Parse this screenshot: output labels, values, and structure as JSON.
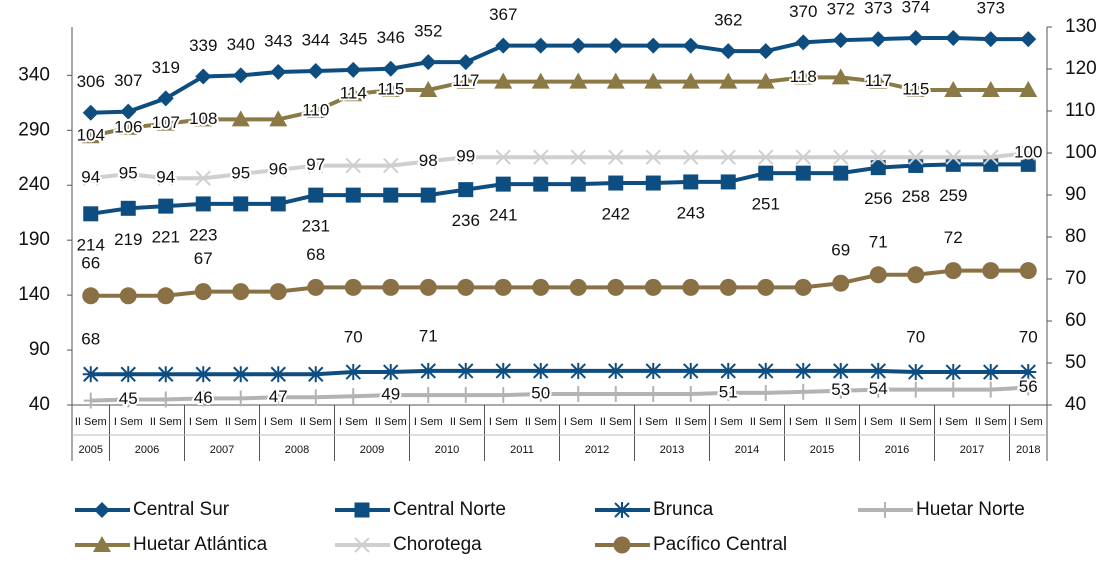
{
  "chart_data": {
    "type": "line",
    "categories": [
      "II Sem",
      "I Sem",
      "II Sem",
      "I Sem",
      "II Sem",
      "I Sem",
      "II Sem",
      "I Sem",
      "II Sem",
      "I Sem",
      "II Sem",
      "I Sem",
      "II Sem",
      "I Sem",
      "II Sem",
      "I Sem",
      "II Sem",
      "I Sem",
      "II Sem",
      "I Sem",
      "II Sem",
      "I Sem",
      "II Sem",
      "I Sem",
      "II Sem",
      "I Sem"
    ],
    "years": [
      "2005",
      "2006",
      "2007",
      "2008",
      "2009",
      "2010",
      "2011",
      "2012",
      "2013",
      "2014",
      "2015",
      "2016",
      "2017",
      "2018"
    ],
    "ylim": [
      40,
      384
    ],
    "yticks": [
      40,
      90,
      140,
      190,
      240,
      290,
      340
    ],
    "y2lim": [
      40,
      130
    ],
    "y2ticks": [
      40,
      50,
      60,
      70,
      80,
      90,
      100,
      110,
      120,
      130
    ],
    "grid": false,
    "series": [
      {
        "name": "Central Sur",
        "color": "#0e4d80",
        "marker": "diamond",
        "values": [
          306,
          307,
          319,
          339,
          340,
          343,
          344,
          345,
          346,
          352,
          352,
          367,
          367,
          367,
          367,
          367,
          367,
          362,
          362,
          370,
          372,
          373,
          374,
          374,
          373,
          373
        ],
        "value_labels": [
          "306",
          "307",
          "319",
          "339",
          "340",
          "343",
          "344",
          "345",
          "346",
          "352",
          null,
          "367",
          null,
          null,
          null,
          null,
          null,
          "362",
          null,
          "370",
          "372",
          "373",
          "374",
          null,
          "373",
          null
        ]
      },
      {
        "name": "Central Norte",
        "color": "#0e4d80",
        "marker": "square",
        "values": [
          214,
          219,
          221,
          223,
          223,
          223,
          231,
          231,
          231,
          231,
          236,
          241,
          241,
          241,
          242,
          242,
          243,
          243,
          251,
          251,
          251,
          256,
          258,
          259,
          259,
          259
        ],
        "value_labels": [
          "214",
          "219",
          "221",
          "223",
          null,
          null,
          "231",
          null,
          null,
          null,
          "236",
          "241",
          null,
          null,
          "242",
          null,
          "243",
          null,
          "251",
          null,
          null,
          "256",
          "258",
          "259",
          null,
          null
        ]
      },
      {
        "name": "Brunca",
        "color": "#0e4d80",
        "marker": "star",
        "values": [
          68,
          68,
          68,
          68,
          68,
          68,
          68,
          70,
          70,
          71,
          71,
          71,
          71,
          71,
          71,
          71,
          71,
          71,
          71,
          71,
          71,
          71,
          70,
          70,
          70,
          70
        ],
        "value_labels": [
          "68",
          null,
          null,
          null,
          null,
          null,
          null,
          "70",
          null,
          "71",
          null,
          null,
          null,
          null,
          null,
          null,
          null,
          null,
          null,
          null,
          null,
          null,
          "70",
          null,
          null,
          "70"
        ]
      },
      {
        "name": "Huetar Norte",
        "color": "#b3b3b3",
        "marker": "plus",
        "values": [
          44,
          45,
          45,
          46,
          46,
          47,
          47,
          48,
          49,
          49,
          49,
          49,
          50,
          50,
          50,
          50,
          50,
          51,
          51,
          52,
          53,
          54,
          54,
          54,
          54,
          56
        ],
        "value_labels": [
          null,
          "45",
          null,
          "46",
          null,
          "47",
          null,
          null,
          "49",
          null,
          null,
          null,
          "50",
          null,
          null,
          null,
          null,
          "51",
          null,
          null,
          "53",
          "54",
          null,
          null,
          null,
          "56"
        ]
      },
      {
        "name": "Huetar Atlántica",
        "color": "#8b7a45",
        "marker": "triangle",
        "axis": "y2",
        "values": [
          104,
          106,
          107,
          108,
          108,
          108,
          110,
          114,
          115,
          115,
          117,
          117,
          117,
          117,
          117,
          117,
          117,
          117,
          117,
          118,
          118,
          117,
          115,
          115,
          115,
          115
        ],
        "value_labels": [
          "104",
          "106",
          "107",
          "108",
          null,
          null,
          "110",
          "114",
          "115",
          null,
          "117",
          null,
          null,
          null,
          null,
          null,
          null,
          null,
          null,
          "118",
          null,
          "117",
          "115",
          null,
          null,
          null
        ]
      },
      {
        "name": "Chorotega",
        "color": "#cfcfcf",
        "marker": "x",
        "axis": "y2",
        "values": [
          94,
          95,
          94,
          94,
          95,
          96,
          97,
          97,
          97,
          98,
          99,
          99,
          99,
          99,
          99,
          99,
          99,
          99,
          99,
          99,
          99,
          99,
          99,
          99,
          99,
          100
        ],
        "value_labels": [
          "94",
          "95",
          "94",
          null,
          "95",
          "96",
          "97",
          null,
          null,
          "98",
          "99",
          null,
          null,
          null,
          null,
          null,
          null,
          null,
          null,
          null,
          null,
          null,
          null,
          null,
          null,
          "100"
        ]
      },
      {
        "name": "Pacífico Central",
        "color": "#8a7045",
        "marker": "circle",
        "axis": "y2",
        "values": [
          66,
          66,
          66,
          67,
          67,
          67,
          68,
          68,
          68,
          68,
          68,
          68,
          68,
          68,
          68,
          68,
          68,
          68,
          68,
          68,
          69,
          71,
          71,
          72,
          72,
          72
        ],
        "value_labels": [
          "66",
          null,
          null,
          "67",
          null,
          null,
          "68",
          null,
          null,
          null,
          null,
          null,
          null,
          null,
          null,
          null,
          null,
          null,
          null,
          null,
          "69",
          "71",
          null,
          "72",
          null,
          null
        ]
      }
    ]
  }
}
